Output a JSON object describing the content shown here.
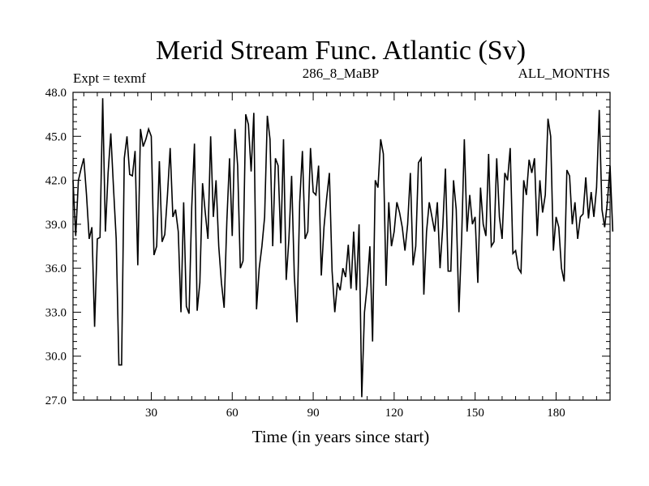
{
  "chart_data": {
    "type": "line",
    "title": "Merid Stream Func. Atlantic (Sv)",
    "subtitle_left": "Expt = texmf",
    "subtitle_center": "286_8_MaBP",
    "subtitle_right": "ALL_MONTHS",
    "xlabel": "Time (in years since start)",
    "ylabel": "",
    "xlim": [
      1,
      200
    ],
    "ylim": [
      27.0,
      48.0
    ],
    "x_major_ticks": [
      30,
      60,
      90,
      120,
      150,
      180
    ],
    "x_tick_labels": [
      "30",
      "60",
      "90",
      "120",
      "150",
      "180"
    ],
    "y_major_ticks": [
      27.0,
      30.0,
      33.0,
      36.0,
      39.0,
      42.0,
      45.0,
      48.0
    ],
    "y_tick_labels": [
      "27.0",
      "30.0",
      "33.0",
      "36.0",
      "39.0",
      "42.0",
      "45.0",
      "48.0"
    ],
    "series": [
      {
        "name": "Merid Stream Func. Atlantic",
        "x_start": 1,
        "x_step": 1,
        "values": [
          42.0,
          38.2,
          42.0,
          42.8,
          43.5,
          41.0,
          38.0,
          38.8,
          32.0,
          38.0,
          38.1,
          47.6,
          38.5,
          42.5,
          45.2,
          41.5,
          38.0,
          29.4,
          29.4,
          43.5,
          45.0,
          42.4,
          42.3,
          44.0,
          36.2,
          45.5,
          44.3,
          44.8,
          45.5,
          45.0,
          36.9,
          37.5,
          43.3,
          37.8,
          38.3,
          41.0,
          44.2,
          39.5,
          40.0,
          38.5,
          33.0,
          40.5,
          33.4,
          32.9,
          40.2,
          44.5,
          33.1,
          35.0,
          41.8,
          39.8,
          38.0,
          45.0,
          39.5,
          42.0,
          37.5,
          35.0,
          33.3,
          39.2,
          43.5,
          38.2,
          45.5,
          43.0,
          36.0,
          36.5,
          46.5,
          45.8,
          42.6,
          46.6,
          33.2,
          36.0,
          37.5,
          39.5,
          46.4,
          44.8,
          37.5,
          43.5,
          43.0,
          37.7,
          44.8,
          35.2,
          38.0,
          42.3,
          35.5,
          32.3,
          40.5,
          44.0,
          38.0,
          38.5,
          44.2,
          41.2,
          41.0,
          43.0,
          35.5,
          38.8,
          40.8,
          42.5,
          35.8,
          33.0,
          35.0,
          34.5,
          36.0,
          35.4,
          37.6,
          34.6,
          38.5,
          34.5,
          39.0,
          27.2,
          33.0,
          34.8,
          37.5,
          31.0,
          42.0,
          41.5,
          44.8,
          43.8,
          34.8,
          40.5,
          37.5,
          38.5,
          40.5,
          39.8,
          38.8,
          37.2,
          39.0,
          42.5,
          36.2,
          37.5,
          43.2,
          43.5,
          34.2,
          38.5,
          40.5,
          39.5,
          38.5,
          40.5,
          36.0,
          38.8,
          42.8,
          35.8,
          35.8,
          42.0,
          40.0,
          33.0,
          38.0,
          44.8,
          38.5,
          41.0,
          39.0,
          39.5,
          35.0,
          41.5,
          39.0,
          38.2,
          43.8,
          37.5,
          37.8,
          43.5,
          39.5,
          38.0,
          42.5,
          42.0,
          44.2,
          37.0,
          37.2,
          36.0,
          35.7,
          42.0,
          41.0,
          43.4,
          42.5,
          43.5,
          38.2,
          42.0,
          39.8,
          41.0,
          46.2,
          45.0,
          37.2,
          39.5,
          38.8,
          36.0,
          35.1,
          42.7,
          42.3,
          39.0,
          40.5,
          38.0,
          39.5,
          39.7,
          42.2,
          39.4,
          41.2,
          39.5,
          41.5,
          46.8,
          40.0,
          38.8,
          40.5,
          43.0,
          38.5
        ]
      }
    ],
    "grid": false,
    "legend": "none"
  }
}
